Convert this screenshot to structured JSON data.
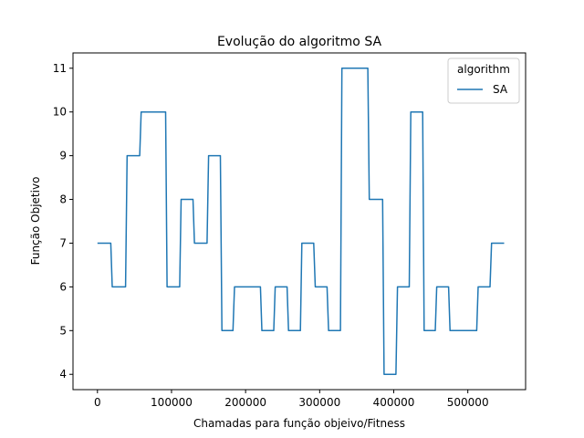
{
  "chart_data": {
    "type": "line",
    "title": "Evolução do algoritmo SA",
    "xlabel": "Chamadas para função objeivo/Fitness",
    "ylabel": "Função Objetivo",
    "xlim": [
      -33000,
      578000
    ],
    "ylim": [
      3.65,
      11.35
    ],
    "xticks": [
      0,
      100000,
      200000,
      300000,
      400000,
      500000
    ],
    "xtick_labels": [
      "0",
      "100000",
      "200000",
      "300000",
      "400000",
      "500000"
    ],
    "yticks": [
      4,
      5,
      6,
      7,
      8,
      9,
      10,
      11
    ],
    "ytick_labels": [
      "4",
      "5",
      "6",
      "7",
      "8",
      "9",
      "10",
      "11"
    ],
    "grid": false,
    "legend": {
      "title": "algorithm",
      "location": "upper right"
    },
    "series": [
      {
        "name": "SA",
        "color": "#1f77b4",
        "x": [
          0,
          9000,
          18000,
          20000,
          29000,
          38000,
          40000,
          49000,
          57000,
          59000,
          68000,
          83000,
          92000,
          94000,
          103000,
          111000,
          113000,
          122000,
          129000,
          131000,
          140000,
          148000,
          150000,
          159000,
          166000,
          168000,
          177000,
          183000,
          185000,
          194000,
          220000,
          222000,
          231000,
          238000,
          240000,
          249000,
          256000,
          258000,
          267000,
          274000,
          276000,
          285000,
          292000,
          294000,
          303000,
          310000,
          312000,
          321000,
          328000,
          330000,
          339000,
          365000,
          367000,
          376000,
          385000,
          387000,
          396000,
          403000,
          405000,
          414000,
          421000,
          423000,
          432000,
          439000,
          441000,
          450000,
          456000,
          458000,
          467000,
          474000,
          476000,
          485000,
          512000,
          514000,
          523000,
          530000,
          532000,
          541000,
          549000
        ],
        "y": [
          7,
          7,
          7,
          6,
          6,
          6,
          9,
          9,
          9,
          10,
          10,
          10,
          10,
          6,
          6,
          6,
          8,
          8,
          8,
          7,
          7,
          7,
          9,
          9,
          9,
          5,
          5,
          5,
          6,
          6,
          6,
          5,
          5,
          5,
          6,
          6,
          6,
          5,
          5,
          5,
          7,
          7,
          7,
          6,
          6,
          6,
          5,
          5,
          5,
          11,
          11,
          11,
          8,
          8,
          8,
          4,
          4,
          4,
          6,
          6,
          6,
          10,
          10,
          10,
          5,
          5,
          5,
          6,
          6,
          6,
          5,
          5,
          5,
          6,
          6,
          6,
          7,
          7,
          7
        ]
      }
    ]
  }
}
